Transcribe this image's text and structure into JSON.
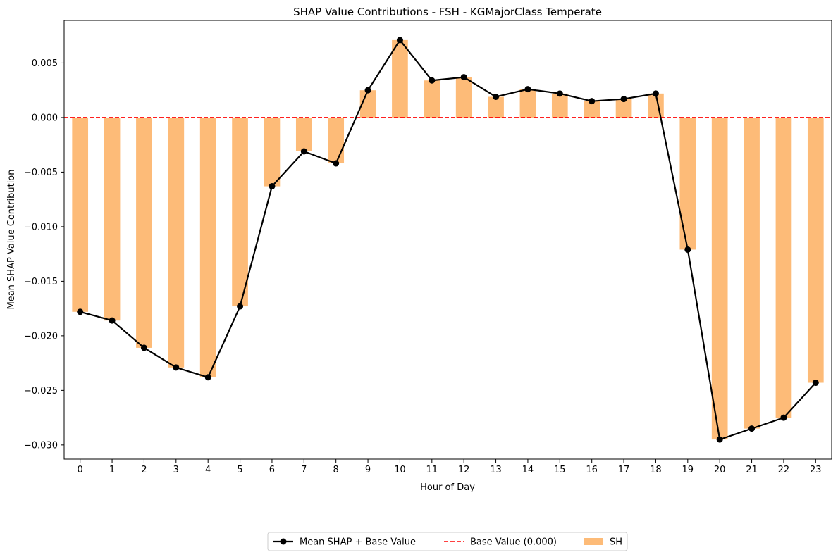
{
  "chart_data": {
    "type": "bar",
    "title": "SHAP Value Contributions - FSH - KGMajorClass Temperate",
    "xlabel": "Hour of Day",
    "ylabel": "Mean SHAP Value Contribution",
    "categories": [
      "0",
      "1",
      "2",
      "3",
      "4",
      "5",
      "6",
      "7",
      "8",
      "9",
      "10",
      "11",
      "12",
      "13",
      "14",
      "15",
      "16",
      "17",
      "18",
      "19",
      "20",
      "21",
      "22",
      "23"
    ],
    "ylim": [
      -0.0313,
      0.0089
    ],
    "yticks": [
      0.005,
      0.0,
      -0.005,
      -0.01,
      -0.015,
      -0.02,
      -0.025,
      -0.03
    ],
    "ytick_labels": [
      "0.005",
      "0.000",
      "−0.005",
      "−0.010",
      "−0.015",
      "−0.020",
      "−0.025",
      "−0.030"
    ],
    "grid": false,
    "legend_position": "bottom-center",
    "series": [
      {
        "name": "SH",
        "kind": "bar",
        "color": "#fdbb78",
        "values": [
          -0.0178,
          -0.0186,
          -0.0211,
          -0.0229,
          -0.0238,
          -0.0173,
          -0.0063,
          -0.0031,
          -0.0042,
          0.0025,
          0.0071,
          0.0034,
          0.0037,
          0.0019,
          0.0026,
          0.0022,
          0.0015,
          0.0017,
          0.0022,
          -0.0121,
          -0.0295,
          -0.0285,
          -0.0275,
          -0.0243
        ]
      },
      {
        "name": "Mean SHAP + Base Value",
        "kind": "line",
        "color": "#000000",
        "values": [
          -0.0178,
          -0.0186,
          -0.0211,
          -0.0229,
          -0.0238,
          -0.0173,
          -0.0063,
          -0.0031,
          -0.0042,
          0.0025,
          0.0071,
          0.0034,
          0.0037,
          0.0019,
          0.0026,
          0.0022,
          0.0015,
          0.0017,
          0.0022,
          -0.0121,
          -0.0295,
          -0.0285,
          -0.0275,
          -0.0243
        ]
      },
      {
        "name": "Base Value (0.000)",
        "kind": "hline",
        "color": "#ff0000",
        "value": 0.0
      }
    ],
    "legend": [
      {
        "label": "Mean SHAP + Base Value",
        "kind": "line-marker",
        "color": "#000000"
      },
      {
        "label": "Base Value (0.000)",
        "kind": "dashed",
        "color": "#ff0000"
      },
      {
        "label": "SH",
        "kind": "patch",
        "color": "#fdbb78"
      }
    ]
  }
}
